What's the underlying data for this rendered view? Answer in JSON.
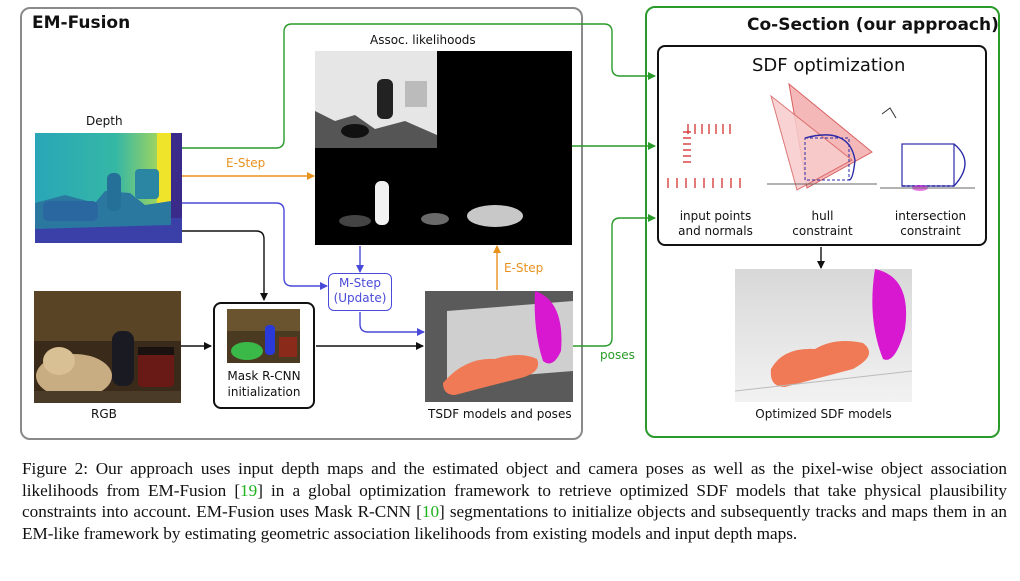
{
  "panels": {
    "em_fusion_title": "EM-Fusion",
    "cosection_title": "Co-Section (our approach)"
  },
  "labels": {
    "depth": "Depth",
    "rgb": "RGB",
    "assoc": "Assoc. likelihoods",
    "mask_rcnn": "Mask R-CNN",
    "mask_init": "initialization",
    "tsdf": "TSDF models and poses",
    "sdf_optimization": "SDF optimization",
    "input_points_1": "input points",
    "input_points_2": "and normals",
    "hull_1": "hull",
    "hull_2": "constraint",
    "intersection_1": "intersection",
    "intersection_2": "constraint",
    "optimized": "Optimized SDF models"
  },
  "edges": {
    "e_step_1": "E-Step",
    "e_step_2": "E-Step",
    "m_step_1": "M-Step",
    "m_step_2": "(Update)",
    "poses": "poses"
  },
  "colors": {
    "orange": "#e8921e",
    "blue": "#4a4ad8",
    "green": "#2a9a2a",
    "magenta": "#d818d0",
    "salmon": "#f07a55",
    "ref_green": "#1db31d"
  },
  "caption": {
    "part1": "Figure 2: Our approach uses input depth maps and the estimated object and camera poses as well as the pixel-wise object association likelihoods from EM-Fusion [",
    "ref1": "19",
    "part2": "] in a global optimization framework to retrieve optimized SDF models that take physical plausibility constraints into account.  EM-Fusion uses Mask R-CNN [",
    "ref2": "10",
    "part3": "] segmentations to initialize objects and subsequently tracks and maps them in an EM-like framework by estimating geometric association likelihoods from existing models and input depth maps."
  }
}
